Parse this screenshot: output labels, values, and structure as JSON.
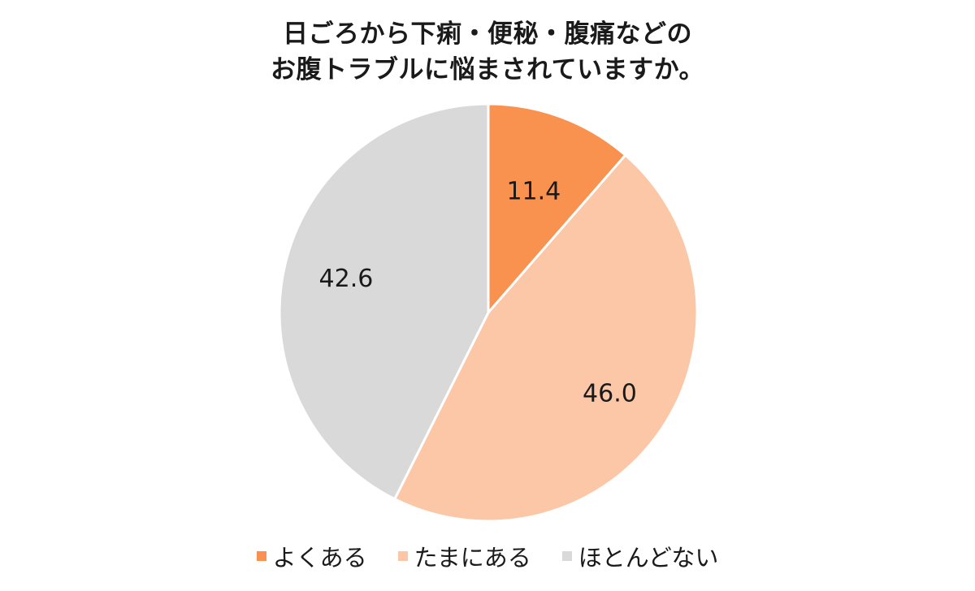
{
  "chart_data": {
    "type": "pie",
    "title_lines": [
      "日ごろから下痢・便秘・腹痛などの",
      "お腹トラブルに悩まされていますか。"
    ],
    "categories": [
      "よくある",
      "たまにある",
      "ほとんどない"
    ],
    "values": [
      11.4,
      46.0,
      42.6
    ],
    "value_labels": [
      "11.4",
      "46.0",
      "42.6"
    ],
    "colors": [
      "#F9914F",
      "#FBC7A6",
      "#D9D9D9"
    ],
    "start_angle": "12-o'clock",
    "direction": "clockwise",
    "legend_position": "bottom"
  }
}
